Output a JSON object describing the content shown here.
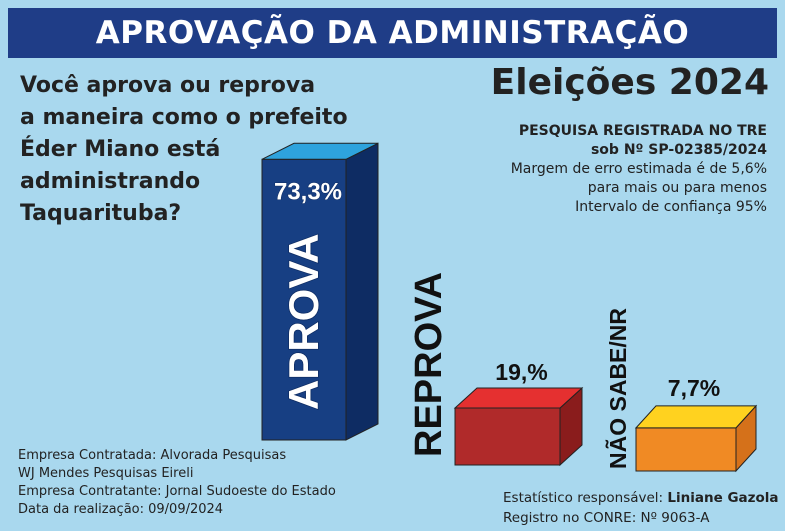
{
  "header": {
    "title": "APROVAÇÃO DA ADMINISTRAÇÃO"
  },
  "question": {
    "lines": [
      "Você aprova ou reprova",
      "a maneira como o prefeito",
      "Éder Miano está",
      "administrando",
      "Taquarituba?"
    ]
  },
  "election": {
    "title": "Eleições 2024"
  },
  "registration": {
    "line1": "PESQUISA REGISTRADA NO TRE",
    "line2": "sob Nº SP-02385/2024",
    "line3": "Margem de erro estimada é de 5,6%",
    "line4": "para mais ou para menos",
    "line5": "Intervalo de confiança 95%"
  },
  "footer_left": {
    "line1": "Empresa Contratada: Alvorada Pesquisas",
    "line2": "WJ Mendes Pesquisas Eireli",
    "line3": "Empresa Contratante: Jornal Sudoeste do Estado",
    "line4": "Data da realização: 09/09/2024"
  },
  "footer_right": {
    "label1": "Estatístico responsável: ",
    "name": "Liniane Gazola",
    "line2": "Registro no CONRE: Nº 9063-A"
  },
  "chart_data": {
    "type": "bar",
    "categories": [
      "APROVA",
      "REPROVA",
      "NÃO SABE/NR"
    ],
    "values": [
      73.3,
      19.0,
      7.7
    ],
    "value_labels": [
      "73,3%",
      "19,%",
      "7,7%"
    ],
    "unit": "%",
    "colors": {
      "aprova_front": "#173f83",
      "aprova_side": "#0e2c63",
      "aprova_top": "#2ea3dd",
      "reprova_front": "#b02a2a",
      "reprova_side": "#8a1c1c",
      "reprova_top": "#e53030",
      "nsnr_front": "#f08a24",
      "nsnr_side": "#d5711a",
      "nsnr_top": "#ffd21f"
    }
  }
}
